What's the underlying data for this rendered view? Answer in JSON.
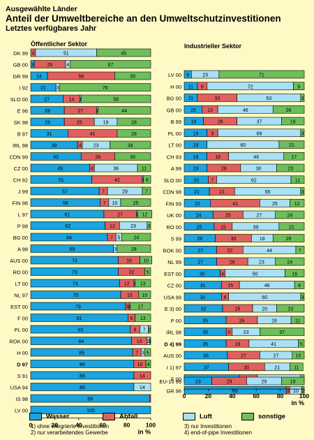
{
  "title_kicker": "Ausgewählte Länder",
  "title_main": "Anteil der Umweltbereiche an den Umweltschutzinvestitionen",
  "title_sub": "Letztes verfügbares Jahr",
  "colors": {
    "wasser": "#1aa4e0",
    "abfall": "#e06060",
    "luft": "#a9e0f5",
    "sonstige": "#6cbf5b"
  },
  "legend": [
    {
      "key": "wasser",
      "label": "Wasser"
    },
    {
      "key": "abfall",
      "label": "Abfall"
    },
    {
      "key": "luft",
      "label": "Luft"
    },
    {
      "key": "sonstige",
      "label": "sonstige"
    }
  ],
  "footnotes": {
    "f1": "1)  ohne integrierte Investitionen",
    "f2": "2)  nur verarbeitendes Gewerbe",
    "f3": "3)  nur Investitionen",
    "f4": "4)  end-of-pipe Investitionen"
  },
  "chart_data": [
    {
      "type": "bar",
      "stacked": true,
      "orientation": "horizontal",
      "title": "Öffentlicher Sektor",
      "xlabel": "in %",
      "xlim": [
        0,
        100
      ],
      "xticks": [
        0,
        20,
        40,
        60,
        80,
        100
      ],
      "series_keys": [
        "wasser",
        "abfall",
        "luft",
        "sonstige"
      ],
      "series_names": [
        "Wasser",
        "Abfall",
        "Luft",
        "sonstige"
      ],
      "rows": [
        {
          "label": "DK 99",
          "values": [
            0,
            4,
            51,
            45
          ],
          "labels": [
            "",
            "4",
            "51",
            "45"
          ]
        },
        {
          "label": "GB 00",
          "values": [
            3,
            26,
            4,
            67
          ],
          "labels": [
            "3",
            "26",
            "4",
            "67"
          ]
        },
        {
          "label": "GR 99",
          "values": [
            14,
            56,
            0,
            30
          ],
          "labels": [
            "14",
            "56",
            "",
            "30"
          ]
        },
        {
          "label": "I 92",
          "values": [
            21,
            0,
            3,
            76
          ],
          "labels": [
            "21",
            "",
            "3",
            "76"
          ]
        },
        {
          "label": "SLO 00",
          "values": [
            27,
            14,
            1,
            58
          ],
          "labels": [
            "27",
            "14",
            "1",
            "58"
          ]
        },
        {
          "label": "E 96",
          "values": [
            28,
            27,
            1,
            44
          ],
          "labels": [
            "28",
            "27",
            "1",
            "44"
          ]
        },
        {
          "label": "SK 98",
          "values": [
            28,
            25,
            19,
            28
          ],
          "labels": [
            "28",
            "25",
            "19",
            "28"
          ]
        },
        {
          "label": "B 97",
          "values": [
            31,
            41,
            0,
            28
          ],
          "labels": [
            "31",
            "41",
            "",
            "28"
          ]
        },
        {
          "label": "IRL 98",
          "values": [
            39,
            4,
            23,
            34
          ],
          "labels": [
            "39",
            "4",
            "23",
            "34"
          ]
        },
        {
          "label": "CDN 99",
          "values": [
            42,
            28,
            0,
            30
          ],
          "labels": [
            "42",
            "28",
            "",
            "30"
          ]
        },
        {
          "label": "CZ 00",
          "values": [
            49,
            4,
            36,
            11
          ],
          "labels": [
            "49",
            "4",
            "36",
            "11"
          ]
        },
        {
          "label": "CH 92",
          "values": [
            51,
            42,
            1,
            6
          ],
          "labels": [
            "51",
            "42",
            "1",
            "6"
          ]
        },
        {
          "label": "J 99",
          "values": [
            57,
            7,
            29,
            7
          ],
          "labels": [
            "57",
            "7",
            "29",
            "7"
          ]
        },
        {
          "label": "FIN 98",
          "values": [
            58,
            7,
            10,
            25
          ],
          "labels": [
            "58",
            "7",
            "10",
            "25"
          ]
        },
        {
          "label": "L 97",
          "values": [
            61,
            27,
            1,
            12
          ],
          "labels": [
            "61",
            "27",
            "1",
            "12"
          ]
        },
        {
          "label": "P 98",
          "values": [
            62,
            12,
            23,
            3
          ],
          "labels": [
            "62",
            "12",
            "23",
            "3"
          ]
        },
        {
          "label": "BG 00",
          "values": [
            64,
            7,
            5,
            24
          ],
          "labels": [
            "64",
            "7",
            "5",
            "24"
          ]
        },
        {
          "label": "A 98",
          "values": [
            69,
            0,
            3,
            28
          ],
          "labels": [
            "69",
            "",
            "3",
            "28"
          ]
        },
        {
          "label": "AUS 00",
          "values": [
            73,
            18,
            0,
            10
          ],
          "labels": [
            "73",
            "18",
            "",
            "10"
          ]
        },
        {
          "label": "RO 00",
          "values": [
            73,
            22,
            0,
            5
          ],
          "labels": [
            "73",
            "22",
            "",
            "5"
          ]
        },
        {
          "label": "LT 00",
          "values": [
            74,
            12,
            1,
            13
          ],
          "labels": [
            "74",
            "12",
            "1",
            "13"
          ]
        },
        {
          "label": "NL 97",
          "values": [
            75,
            15,
            0,
            10
          ],
          "labels": [
            "75",
            "15",
            "",
            "10"
          ]
        },
        {
          "label": "EST 00",
          "values": [
            79,
            3,
            1,
            17
          ],
          "labels": [
            "79",
            "3",
            "1",
            "17"
          ]
        },
        {
          "label": "F 00",
          "values": [
            81,
            6,
            0,
            13
          ],
          "labels": [
            "81",
            "6",
            "",
            "13"
          ]
        },
        {
          "label": "PL 00",
          "values": [
            83,
            8,
            7,
            2
          ],
          "labels": [
            "83",
            "8",
            "7",
            "2"
          ]
        },
        {
          "label": "ROK 00",
          "values": [
            84,
            13,
            2,
            1
          ],
          "labels": [
            "84",
            "13",
            "2",
            "1"
          ]
        },
        {
          "label": "H 00",
          "values": [
            85,
            7,
            3,
            5
          ],
          "labels": [
            "85",
            "7",
            "3",
            "5"
          ]
        },
        {
          "label": "D 97",
          "bold": true,
          "values": [
            86,
            10,
            0,
            4
          ],
          "labels": [
            "86",
            "10",
            "",
            "4"
          ]
        },
        {
          "label": "S 91",
          "values": [
            86,
            14,
            0,
            0
          ],
          "labels": [
            "86",
            "14",
            "",
            ""
          ]
        },
        {
          "label": "USA 94",
          "values": [
            86,
            0,
            14,
            0
          ],
          "labels": [
            "86",
            "",
            "14",
            ""
          ]
        },
        {
          "label": "IS 98",
          "values": [
            99,
            1,
            0,
            0
          ],
          "labels": [
            "99",
            "",
            "",
            ""
          ]
        },
        {
          "label": "LV 00",
          "values": [
            100,
            0,
            0,
            0
          ],
          "labels": [
            "100",
            "",
            "",
            ""
          ]
        }
      ]
    },
    {
      "type": "bar",
      "stacked": true,
      "orientation": "horizontal",
      "title": "Industrieller Sektor",
      "xlabel": "in %",
      "xlim": [
        0,
        100
      ],
      "xticks": [
        0,
        20,
        40,
        60,
        80,
        100
      ],
      "series_keys": [
        "wasser",
        "abfall",
        "luft",
        "sonstige"
      ],
      "series_names": [
        "Wasser",
        "Abfall",
        "Luft",
        "sonstige"
      ],
      "rows": [
        {
          "label": "LV 00",
          "values": [
            6,
            0,
            23,
            71
          ],
          "labels": [
            "6",
            "",
            "23",
            "71"
          ]
        },
        {
          "label": "H 00",
          "values": [
            11,
            8,
            72,
            9
          ],
          "labels": [
            "11",
            "8",
            "72",
            "9"
          ]
        },
        {
          "label": "BG 00",
          "values": [
            11,
            33,
            53,
            3
          ],
          "labels": [
            "11",
            "33",
            "53",
            "3"
          ]
        },
        {
          "label": "GB 00",
          "values": [
            15,
            13,
            46,
            26
          ],
          "labels": [
            "15",
            "13",
            "46",
            "26"
          ]
        },
        {
          "label": "B 99",
          "values": [
            16,
            28,
            37,
            19
          ],
          "labels": [
            "16",
            "28",
            "37",
            "19"
          ]
        },
        {
          "label": "PL 00",
          "values": [
            19,
            9,
            69,
            3
          ],
          "labels": [
            "19",
            "9",
            "69",
            "3"
          ]
        },
        {
          "label": "LT 00",
          "values": [
            19,
            0,
            60,
            21
          ],
          "labels": [
            "19",
            "",
            "60",
            "21"
          ]
        },
        {
          "label": "CH 93",
          "values": [
            19,
            18,
            46,
            17
          ],
          "labels": [
            "19",
            "18",
            "46",
            "17"
          ]
        },
        {
          "label": "A 99",
          "values": [
            19,
            28,
            30,
            23
          ],
          "labels": [
            "19",
            "28",
            "30",
            "23"
          ]
        },
        {
          "label": "SLO 00",
          "values": [
            20,
            7,
            62,
            11
          ],
          "labels": [
            "20",
            "7",
            "62",
            "11"
          ]
        },
        {
          "label": "CDN 98",
          "values": [
            21,
            21,
            55,
            3
          ],
          "labels": [
            "21",
            "21",
            "55",
            "3"
          ]
        },
        {
          "label": "FIN 99",
          "values": [
            22,
            41,
            25,
            12
          ],
          "labels": [
            "22",
            "41",
            "25",
            "12"
          ]
        },
        {
          "label": "UK 00",
          "values": [
            24,
            25,
            27,
            24
          ],
          "labels": [
            "24",
            "25",
            "27",
            "24"
          ]
        },
        {
          "label": "RO 00",
          "values": [
            25,
            15,
            39,
            21
          ],
          "labels": [
            "25",
            "15",
            "39",
            "21"
          ]
        },
        {
          "label": "S 99",
          "values": [
            26,
            30,
            18,
            26
          ],
          "labels": [
            "26",
            "30",
            "18",
            "26"
          ]
        },
        {
          "label": "ROK 00",
          "values": [
            27,
            22,
            44,
            7
          ],
          "labels": [
            "27",
            "22",
            "44",
            "7"
          ]
        },
        {
          "label": "NL 99",
          "values": [
            27,
            26,
            23,
            24
          ],
          "labels": [
            "27",
            "26",
            "23",
            "24"
          ]
        },
        {
          "label": "EST 00",
          "values": [
            30,
            4,
            50,
            16
          ],
          "labels": [
            "30",
            "4",
            "50",
            "16"
          ]
        },
        {
          "label": "CZ 00",
          "values": [
            31,
            15,
            46,
            8
          ],
          "labels": [
            "31",
            "15",
            "46",
            "8"
          ]
        },
        {
          "label": "USA 99",
          "values": [
            31,
            6,
            60,
            3
          ],
          "labels": [
            "31",
            "6",
            "60",
            "3"
          ]
        },
        {
          "label": "E 3) 00",
          "values": [
            32,
            25,
            20,
            23
          ],
          "labels": [
            "32",
            "25",
            "20",
            "23"
          ]
        },
        {
          "label": "P 00",
          "values": [
            35,
            26,
            28,
            11
          ],
          "labels": [
            "35",
            "26",
            "28",
            "11"
          ]
        },
        {
          "label": "IRL 98",
          "values": [
            35,
            5,
            23,
            37
          ],
          "labels": [
            "35",
            "5",
            "23",
            "37"
          ]
        },
        {
          "label": "D 4) 99",
          "bold": true,
          "values": [
            35,
            19,
            41,
            5
          ],
          "labels": [
            "35",
            "19",
            "41",
            "5"
          ]
        },
        {
          "label": "AUS 00",
          "values": [
            36,
            27,
            27,
            10
          ],
          "labels": [
            "36",
            "27",
            "27",
            "10"
          ]
        },
        {
          "label": "I 1) 97",
          "values": [
            37,
            30,
            21,
            11
          ],
          "labels": [
            "37",
            "30",
            "21",
            "11"
          ]
        },
        {
          "label": "F 00",
          "values": [
            46,
            15,
            36,
            3
          ],
          "labels": [
            "46",
            "15",
            "36",
            "3"
          ]
        },
        {
          "label": "GR 96",
          "values": [
            85,
            3,
            10,
            2
          ],
          "labels": [
            "85",
            "3",
            "10",
            "2"
          ]
        },
        {
          "label": "EU-15 99",
          "values": [
            23,
            29,
            29,
            19
          ],
          "labels": [
            "23",
            "29",
            "29",
            "19"
          ]
        }
      ]
    }
  ]
}
